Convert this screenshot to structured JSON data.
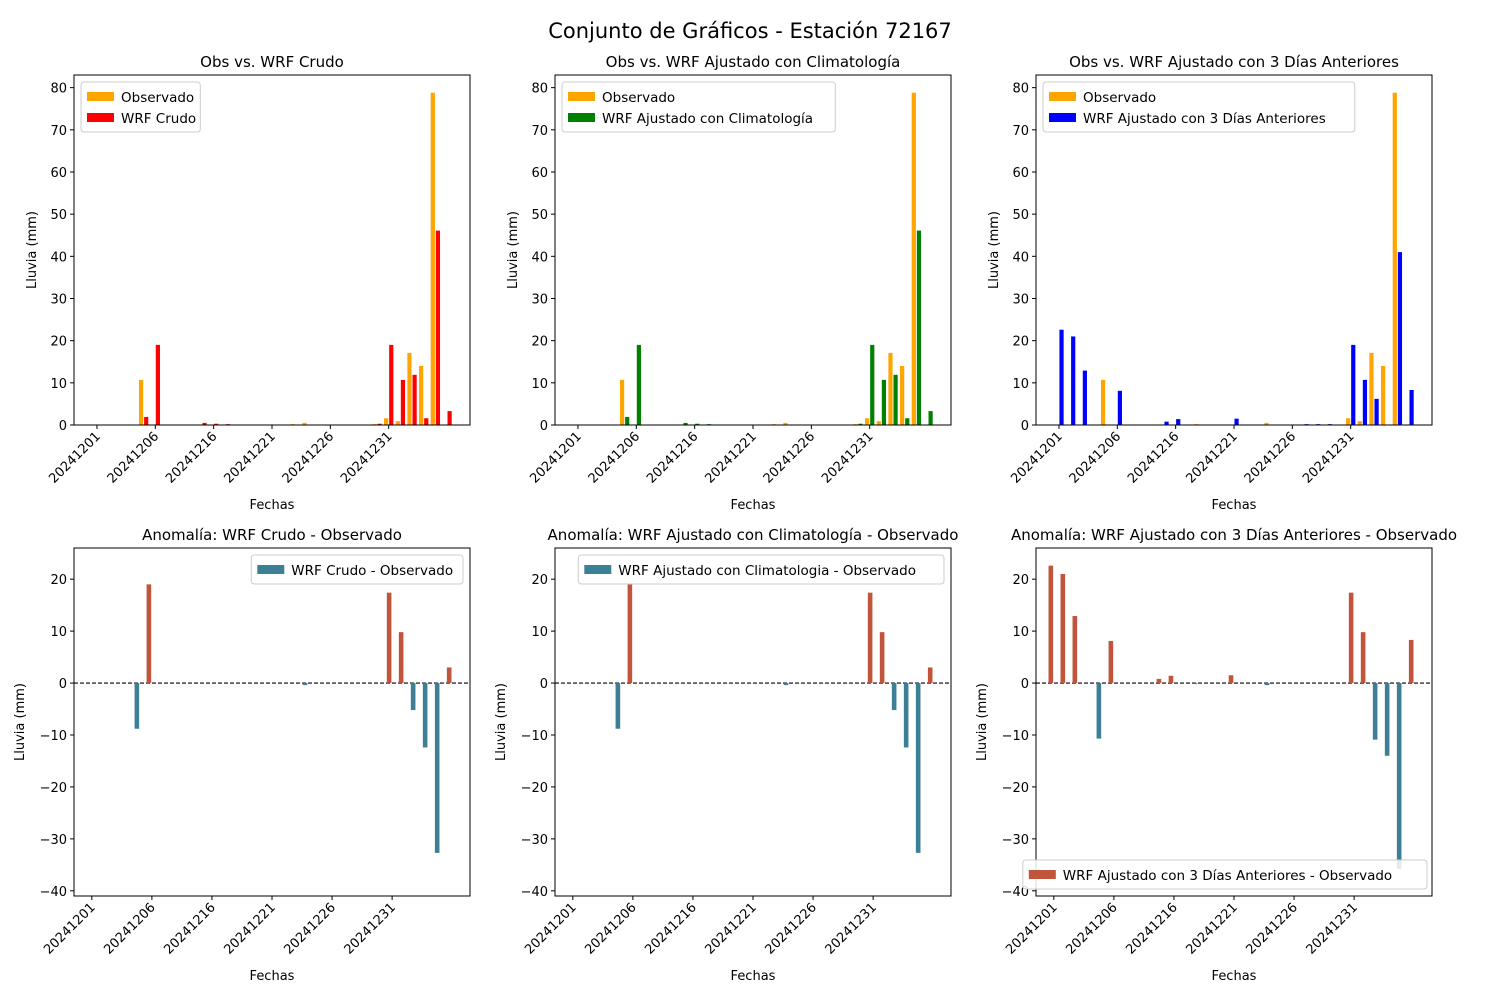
{
  "figure": {
    "title": "Conjunto de Gráficos - Estación 72167"
  },
  "chart_data": [
    {
      "type": "bar",
      "title": "Obs vs. WRF Crudo",
      "xlabel": "Fechas",
      "ylabel": "Lluvia (mm)",
      "ylim": [
        0,
        83
      ],
      "yticks": [
        0,
        10,
        20,
        30,
        40,
        50,
        60,
        70,
        80
      ],
      "xticks": [
        "20241201",
        "20241206",
        "20241216",
        "20241221",
        "20241226",
        "20241231"
      ],
      "legend_position": "upper-left",
      "series": [
        {
          "name": "Observado",
          "color": "#ffa500",
          "points": [
            [
              5,
              10.7
            ],
            [
              6,
              0
            ],
            [
              10,
              0
            ],
            [
              11,
              0
            ],
            [
              12,
              0
            ],
            [
              13,
              0
            ],
            [
              18,
              0.2
            ],
            [
              19,
              0.5
            ],
            [
              25,
              0.2
            ],
            [
              26,
              1.6
            ],
            [
              27,
              0.9
            ],
            [
              28,
              17.1
            ],
            [
              29,
              14.0
            ],
            [
              30,
              78.8
            ],
            [
              31,
              0
            ]
          ]
        },
        {
          "name": "WRF Crudo",
          "color": "#ff0000",
          "points": [
            [
              5,
              1.9
            ],
            [
              6,
              19.0
            ],
            [
              10,
              0.5
            ],
            [
              11,
              0.3
            ],
            [
              12,
              0.2
            ],
            [
              18,
              0.1
            ],
            [
              25,
              0.3
            ],
            [
              26,
              19.0
            ],
            [
              27,
              10.7
            ],
            [
              28,
              11.9
            ],
            [
              29,
              1.6
            ],
            [
              30,
              46.1
            ],
            [
              31,
              3.3
            ]
          ]
        }
      ]
    },
    {
      "type": "bar",
      "title": "Obs vs. WRF Ajustado con Climatología",
      "xlabel": "Fechas",
      "ylabel": "Lluvia (mm)",
      "ylim": [
        0,
        83
      ],
      "yticks": [
        0,
        10,
        20,
        30,
        40,
        50,
        60,
        70,
        80
      ],
      "xticks": [
        "20241201",
        "20241206",
        "20241216",
        "20241221",
        "20241226",
        "20241231"
      ],
      "legend_position": "upper-left",
      "series": [
        {
          "name": "Observado",
          "color": "#ffa500",
          "points": [
            [
              5,
              10.7
            ],
            [
              18,
              0.2
            ],
            [
              19,
              0.5
            ],
            [
              25,
              0.2
            ],
            [
              26,
              1.6
            ],
            [
              27,
              0.9
            ],
            [
              28,
              17.1
            ],
            [
              29,
              14.0
            ],
            [
              30,
              78.8
            ]
          ]
        },
        {
          "name": "WRF Ajustado con Climatología",
          "color": "#008000",
          "points": [
            [
              5,
              1.9
            ],
            [
              6,
              19.0
            ],
            [
              10,
              0.5
            ],
            [
              11,
              0.3
            ],
            [
              12,
              0.2
            ],
            [
              18,
              0.1
            ],
            [
              25,
              0.3
            ],
            [
              26,
              19.0
            ],
            [
              27,
              10.7
            ],
            [
              28,
              11.9
            ],
            [
              29,
              1.6
            ],
            [
              30,
              46.1
            ],
            [
              31,
              3.3
            ]
          ]
        }
      ]
    },
    {
      "type": "bar",
      "title": "Obs vs. WRF Ajustado con 3 Días Anteriores",
      "xlabel": "Fechas",
      "ylabel": "Lluvia (mm)",
      "ylim": [
        0,
        83
      ],
      "yticks": [
        0,
        10,
        20,
        30,
        40,
        50,
        60,
        70,
        80
      ],
      "xticks": [
        "20241201",
        "20241206",
        "20241216",
        "20241221",
        "20241226",
        "20241231"
      ],
      "legend_position": "upper-left",
      "series": [
        {
          "name": "Observado",
          "color": "#ffa500",
          "points": [
            [
              5,
              10.7
            ],
            [
              13,
              0.2
            ],
            [
              19,
              0.5
            ],
            [
              26,
              1.6
            ],
            [
              27,
              0.9
            ],
            [
              28,
              17.1
            ],
            [
              29,
              14.0
            ],
            [
              30,
              78.8
            ]
          ]
        },
        {
          "name": "WRF Ajustado con 3 Días Anteriores",
          "color": "#0000ff",
          "points": [
            [
              1,
              22.6
            ],
            [
              2,
              21.0
            ],
            [
              3,
              12.9
            ],
            [
              6,
              8.1
            ],
            [
              10,
              0.8
            ],
            [
              11,
              1.4
            ],
            [
              13,
              0.1
            ],
            [
              16,
              1.5
            ],
            [
              22,
              0.2
            ],
            [
              23,
              0.2
            ],
            [
              24,
              0.2
            ],
            [
              26,
              19.0
            ],
            [
              27,
              10.7
            ],
            [
              28,
              6.2
            ],
            [
              30,
              41.0
            ],
            [
              31,
              8.3
            ]
          ]
        }
      ]
    },
    {
      "type": "bar",
      "title": "Anomalía: WRF Crudo - Observado",
      "xlabel": "Fechas",
      "ylabel": "Lluvia (mm)",
      "ylim": [
        -41,
        26
      ],
      "yticks": [
        -40,
        -30,
        -20,
        -10,
        0,
        10,
        20
      ],
      "xticks": [
        "20241201",
        "20241206",
        "20241216",
        "20241221",
        "20241226",
        "20241231"
      ],
      "legend_position": "upper-right",
      "zero_line": true,
      "positive_color": "#c1553b",
      "negative_color": "#3d7f96",
      "series": [
        {
          "name": "WRF Crudo - Observado",
          "color": "#3d7f96",
          "points": [
            [
              5,
              -8.8
            ],
            [
              6,
              19.0
            ],
            [
              19,
              -0.4
            ],
            [
              26,
              17.4
            ],
            [
              27,
              9.8
            ],
            [
              28,
              -5.2
            ],
            [
              29,
              -12.4
            ],
            [
              30,
              -32.7
            ],
            [
              31,
              3.0
            ]
          ]
        }
      ]
    },
    {
      "type": "bar",
      "title": "Anomalía: WRF Ajustado con Climatología - Observado",
      "xlabel": "Fechas",
      "ylabel": "Lluvia (mm)",
      "ylim": [
        -41,
        26
      ],
      "yticks": [
        -40,
        -30,
        -20,
        -10,
        0,
        10,
        20
      ],
      "xticks": [
        "20241201",
        "20241206",
        "20241216",
        "20241221",
        "20241226",
        "20241231"
      ],
      "legend_position": "upper-right",
      "zero_line": true,
      "positive_color": "#c1553b",
      "negative_color": "#3d7f96",
      "series": [
        {
          "name": "WRF Ajustado con Climatologia - Observado",
          "color": "#3d7f96",
          "points": [
            [
              5,
              -8.8
            ],
            [
              6,
              19.0
            ],
            [
              19,
              -0.4
            ],
            [
              26,
              17.4
            ],
            [
              27,
              9.8
            ],
            [
              28,
              -5.2
            ],
            [
              29,
              -12.4
            ],
            [
              30,
              -32.7
            ],
            [
              31,
              3.0
            ]
          ]
        }
      ]
    },
    {
      "type": "bar",
      "title": "Anomalía: WRF Ajustado con 3 Días Anteriores - Observado",
      "xlabel": "Fechas",
      "ylabel": "Lluvia (mm)",
      "ylim": [
        -41,
        26
      ],
      "yticks": [
        -40,
        -30,
        -20,
        -10,
        0,
        10,
        20
      ],
      "xticks": [
        "20241201",
        "20241206",
        "20241216",
        "20241221",
        "20241226",
        "20241231"
      ],
      "legend_position": "lower-right",
      "zero_line": true,
      "positive_color": "#c1553b",
      "negative_color": "#3d7f96",
      "series": [
        {
          "name": "WRF Ajustado con 3 Días Anteriores - Observado",
          "color": "#c1553b",
          "points": [
            [
              1,
              22.6
            ],
            [
              2,
              21.0
            ],
            [
              3,
              12.9
            ],
            [
              5,
              -10.7
            ],
            [
              6,
              8.1
            ],
            [
              10,
              0.8
            ],
            [
              11,
              1.4
            ],
            [
              13,
              -0.2
            ],
            [
              16,
              1.5
            ],
            [
              19,
              -0.4
            ],
            [
              26,
              17.4
            ],
            [
              27,
              9.8
            ],
            [
              28,
              -10.9
            ],
            [
              29,
              -14.0
            ],
            [
              30,
              -35.8
            ],
            [
              31,
              8.3
            ]
          ]
        }
      ]
    }
  ]
}
